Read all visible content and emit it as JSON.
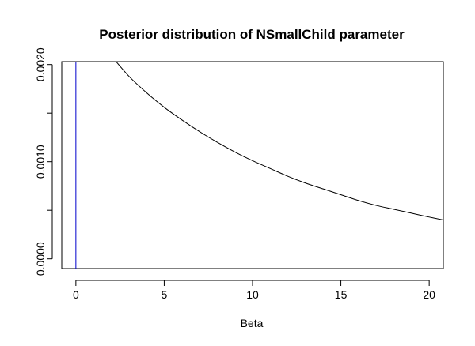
{
  "chart_data": {
    "type": "line",
    "title": "Posterior distribution of NSmallChild parameter",
    "xlabel": "Beta",
    "ylabel": "",
    "xlim": [
      -0.8,
      20.8
    ],
    "ylim": [
      -0.0001,
      0.00203
    ],
    "x_ticks": [
      0,
      5,
      10,
      15,
      20
    ],
    "x_tick_labels": [
      "0",
      "5",
      "10",
      "15",
      "20"
    ],
    "y_ticks": [
      0,
      0.001,
      0.002
    ],
    "y_tick_labels": [
      "0.0000",
      "0.0010",
      "0.0020"
    ],
    "y_minor_ticks": [
      0.0005,
      0.0015
    ],
    "grid": false,
    "series": [
      {
        "x": [
          2.0,
          3,
          4,
          5,
          6,
          7,
          8,
          9,
          10,
          11,
          12,
          13,
          14,
          15,
          16,
          17,
          18,
          19,
          20,
          20.8
        ],
        "values": [
          0.00209,
          0.00188,
          0.00171,
          0.00156,
          0.00143,
          0.00131,
          0.0012,
          0.0011,
          0.00101,
          0.00093,
          0.00085,
          0.00078,
          0.00072,
          0.00066,
          0.0006,
          0.00055,
          0.00051,
          0.00047,
          0.00043,
          0.0004
        ],
        "color": "#000000"
      }
    ],
    "reference_lines": [
      {
        "orientation": "vertical",
        "x": 0,
        "color": "#0000cc"
      }
    ]
  }
}
